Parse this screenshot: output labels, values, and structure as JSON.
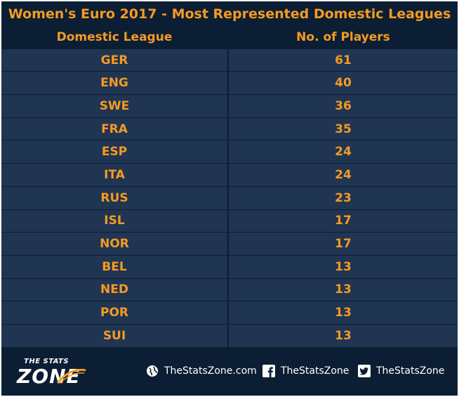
{
  "chart_data": {
    "type": "table",
    "title": "Women's Euro 2017 - Most Represented Domestic Leagues",
    "columns": [
      "Domestic League",
      "No. of Players"
    ],
    "rows": [
      {
        "league": "GER",
        "players": "61"
      },
      {
        "league": "ENG",
        "players": "40"
      },
      {
        "league": "SWE",
        "players": "36"
      },
      {
        "league": "FRA",
        "players": "35"
      },
      {
        "league": "ESP",
        "players": "24"
      },
      {
        "league": "ITA",
        "players": "24"
      },
      {
        "league": "RUS",
        "players": "23"
      },
      {
        "league": "ISL",
        "players": "17"
      },
      {
        "league": "NOR",
        "players": "17"
      },
      {
        "league": "BEL",
        "players": "13"
      },
      {
        "league": "NED",
        "players": "13"
      },
      {
        "league": "POR",
        "players": "13"
      },
      {
        "league": "SUI",
        "players": "13"
      }
    ]
  },
  "colors": {
    "header_bg": "#0b1e33",
    "row_bg": "#1f3552",
    "accent": "#f59a23"
  },
  "footer": {
    "logo_top": "THE STATS",
    "logo_main": "ZONE",
    "website": "TheStatsZone.com",
    "facebook": "TheStatsZone",
    "twitter": "TheStatsZone"
  }
}
